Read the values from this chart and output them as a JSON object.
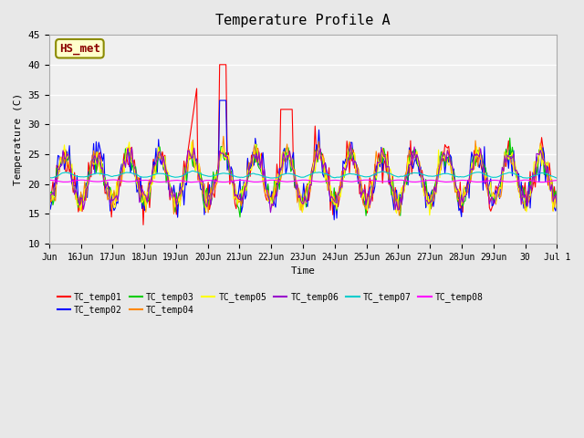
{
  "title": "Temperature Profile A",
  "xlabel": "Time",
  "ylabel": "Temperature (C)",
  "ylim": [
    10,
    45
  ],
  "annotation_text": "HS_met",
  "annotation_color": "#8B0000",
  "annotation_bg": "#FFFFCC",
  "annotation_border": "#8B8B00",
  "series_colors": {
    "TC_temp01": "#FF0000",
    "TC_temp02": "#0000FF",
    "TC_temp03": "#00CC00",
    "TC_temp04": "#FF8800",
    "TC_temp05": "#FFFF00",
    "TC_temp06": "#9900CC",
    "TC_temp07": "#00CCCC",
    "TC_temp08": "#FF00FF"
  },
  "x_tick_labels": [
    "Jun",
    "16Jun",
    "17Jun",
    "18Jun",
    "19Jun",
    "20Jun",
    "21Jun",
    "22Jun",
    "23Jun",
    "24Jun",
    "25Jun",
    "26Jun",
    "27Jun",
    "28Jun",
    "29Jun",
    "30",
    "Jul 1"
  ],
  "background_color": "#E8E8E8",
  "plot_bg": "#F0F0F0",
  "grid_color": "#FFFFFF",
  "font": "monospace"
}
